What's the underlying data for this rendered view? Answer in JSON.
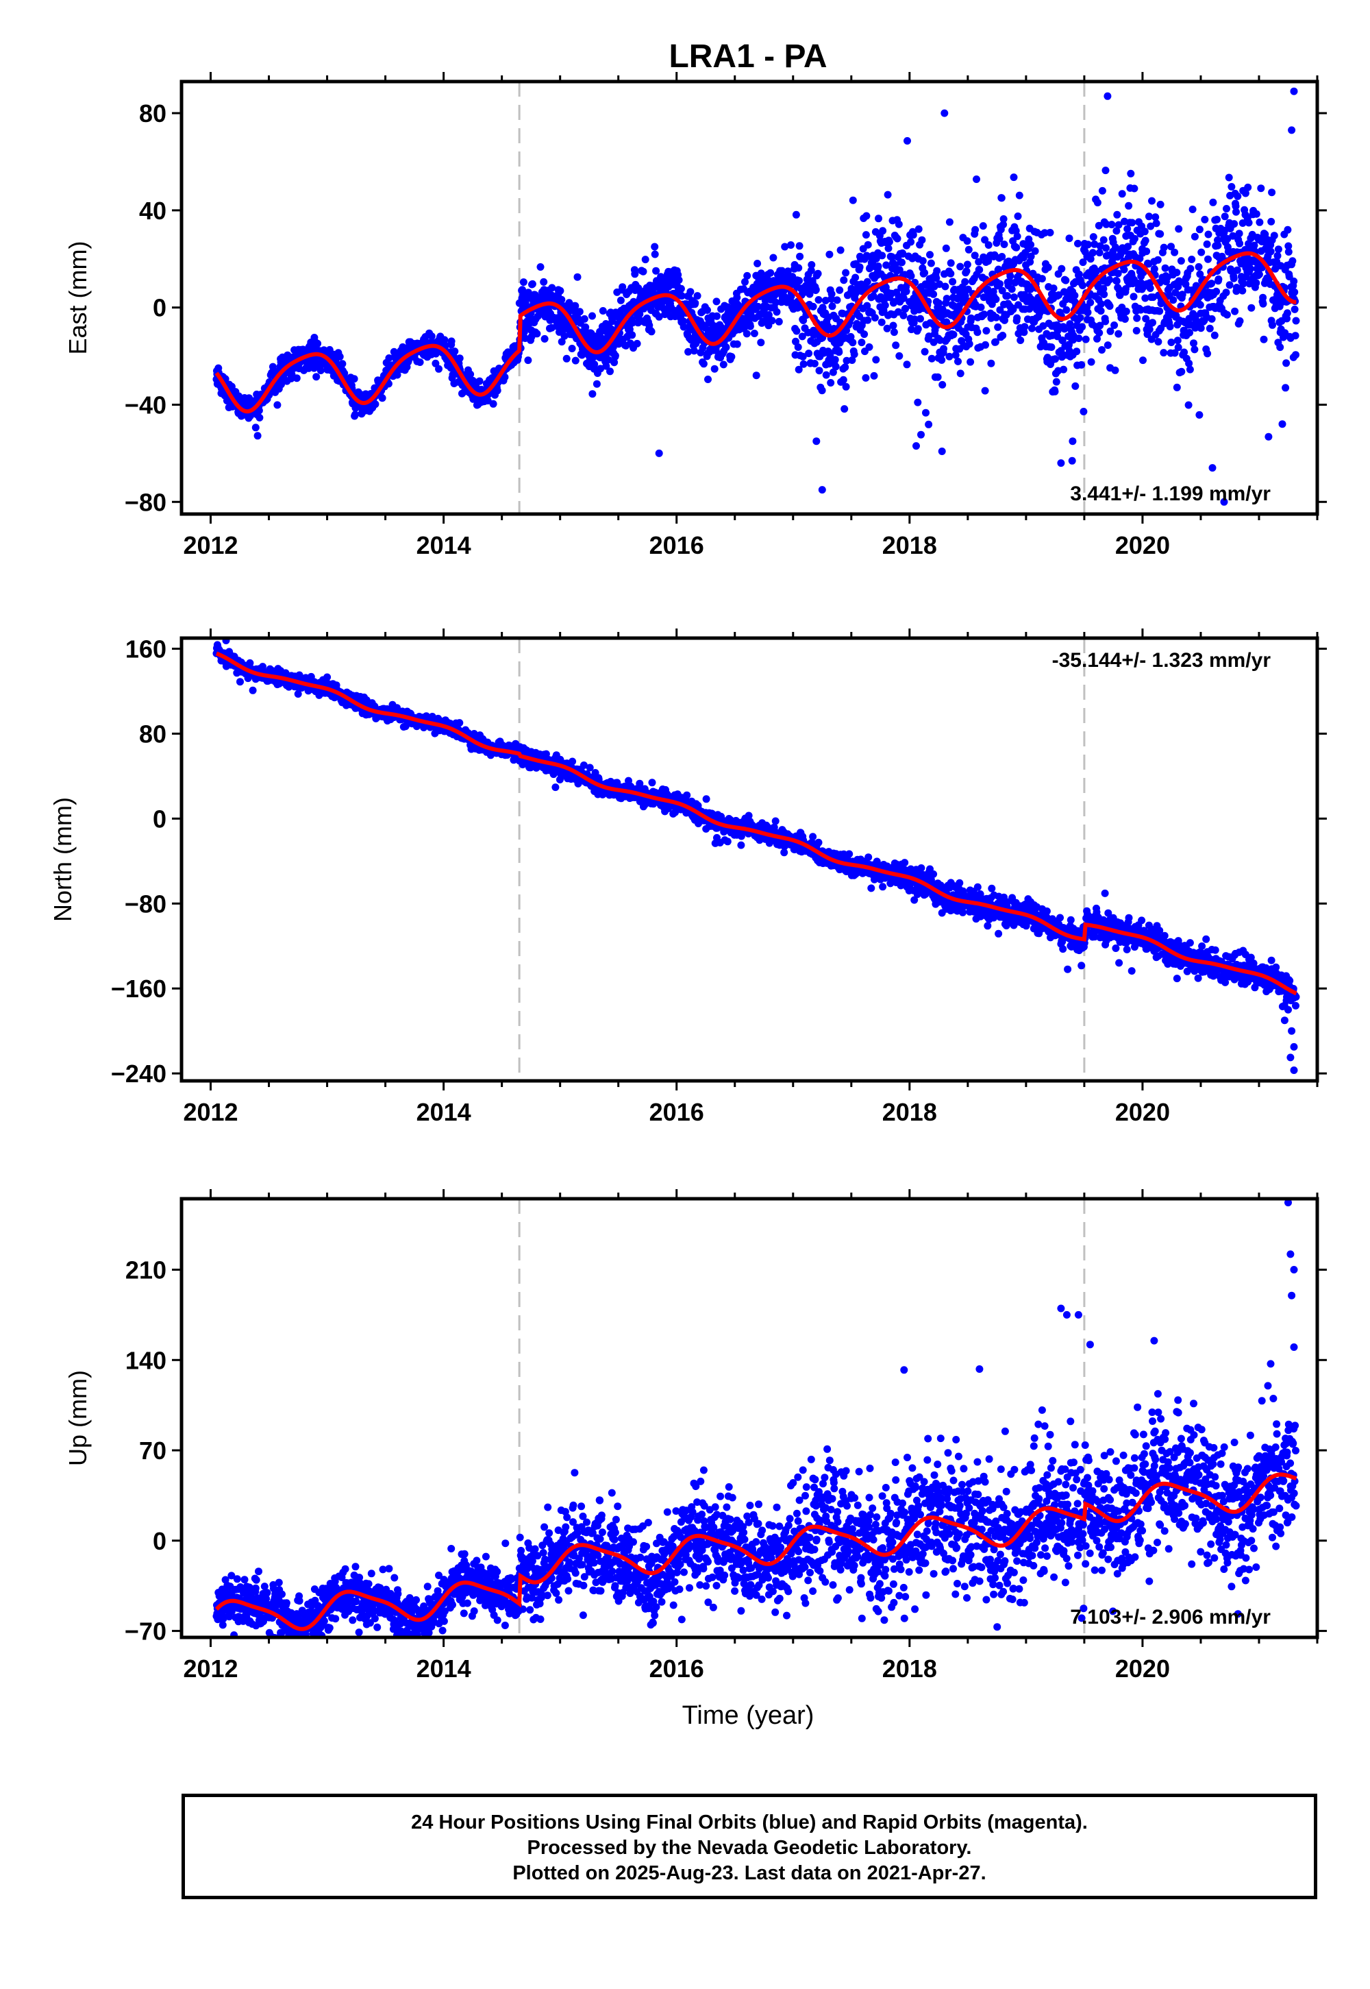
{
  "chart_data": {
    "type": "scatter",
    "title": "LRA1 - PA",
    "xlabel": "Time (year)",
    "x_range": [
      2011.75,
      2021.5
    ],
    "x_ticks": [
      2012,
      2014,
      2016,
      2018,
      2020
    ],
    "x_tick_labels": [
      "2012",
      "2014",
      "2016",
      "2018",
      "2020"
    ],
    "x_start": 2012.05,
    "x_end": 2021.32,
    "offset_epochs": [
      2014.65,
      2019.5
    ],
    "legend_colors": {
      "final_orbits": "#0000ff",
      "model": "#ff0000",
      "offsets": "#c0c0c0"
    },
    "panels": [
      {
        "name": "east",
        "ylabel": "East (mm)",
        "ylim": [
          -85,
          93
        ],
        "yticks": [
          -80,
          -40,
          0,
          40,
          80
        ],
        "ytick_labels": [
          "−80",
          "−40",
          "0",
          "40",
          "80"
        ],
        "rate_text": "3.441+/- 1.199 mm/yr",
        "rate_position": "bottom-right",
        "model": {
          "ref_year": 2016.5,
          "intercept": -2,
          "rate": 3.441,
          "annual_amp": 10.5,
          "annual_phase": 2.6,
          "semi_amp": 2,
          "semi_phase": 1.0,
          "jumps": [
            [
              2014.65,
              14
            ],
            [
              2019.5,
              0
            ]
          ]
        },
        "noise": [
          {
            "until": 2014.65,
            "sd": 2.5
          },
          {
            "until": 2017.0,
            "sd": 6
          },
          {
            "until": 2021.4,
            "sd": 13
          }
        ],
        "outliers": [
          [
            2015.85,
            -60
          ],
          [
            2017.25,
            -75
          ],
          [
            2019.3,
            -64
          ],
          [
            2020.6,
            -66
          ],
          [
            2020.7,
            -80
          ],
          [
            2018.3,
            80
          ],
          [
            2019.7,
            87
          ],
          [
            2021.3,
            89
          ],
          [
            2021.28,
            73
          ],
          [
            2017.2,
            -55
          ],
          [
            2019.4,
            -55
          ],
          [
            2018.7,
            -23
          ]
        ]
      },
      {
        "name": "north",
        "ylabel": "North (mm)",
        "ylim": [
          -247,
          170
        ],
        "yticks": [
          -240,
          -160,
          -80,
          0,
          80,
          160
        ],
        "ytick_labels": [
          "−240",
          "−160",
          "−80",
          "0",
          "80",
          "160"
        ],
        "rate_text": "-35.144+/- 1.323 mm/yr",
        "rate_position": "top-right",
        "model": {
          "ref_year": 2016.5,
          "intercept": 8,
          "rate": -35.144,
          "annual_amp": 3,
          "annual_phase": 2.0,
          "semi_amp": 1,
          "semi_phase": 0.5,
          "jumps": [
            [
              2014.65,
              -2
            ],
            [
              2019.5,
              14
            ]
          ]
        },
        "noise": [
          {
            "until": 2014.65,
            "sd": 3
          },
          {
            "until": 2018.0,
            "sd": 4
          },
          {
            "until": 2021.4,
            "sd": 6
          }
        ],
        "outliers": [
          [
            2021.25,
            -180
          ],
          [
            2021.28,
            -200
          ],
          [
            2021.3,
            -215
          ],
          [
            2021.3,
            -237
          ],
          [
            2021.27,
            -225
          ],
          [
            2019.25,
            -110
          ],
          [
            2019.3,
            -118
          ],
          [
            2021.22,
            -190
          ]
        ]
      },
      {
        "name": "up",
        "ylabel": "Up (mm)",
        "ylim": [
          -75,
          265
        ],
        "yticks": [
          -70,
          0,
          70,
          140,
          210
        ],
        "ytick_labels": [
          "−70",
          "0",
          "70",
          "140",
          "210"
        ],
        "rate_text": "7.103+/- 2.906 mm/yr",
        "rate_position": "bottom-right",
        "model": {
          "ref_year": 2016.5,
          "intercept": 6,
          "rate": 7.103,
          "annual_amp": 12,
          "annual_phase": 0.0,
          "semi_amp": 3,
          "semi_phase": 0.5,
          "jumps": [
            [
              2014.65,
              22
            ],
            [
              2019.5,
              12
            ]
          ]
        },
        "noise": [
          {
            "until": 2014.65,
            "sd": 9
          },
          {
            "until": 2017.0,
            "sd": 16
          },
          {
            "until": 2021.4,
            "sd": 24
          }
        ],
        "outliers": [
          [
            2019.3,
            180
          ],
          [
            2019.35,
            175
          ],
          [
            2019.45,
            175
          ],
          [
            2021.25,
            262
          ],
          [
            2021.27,
            222
          ],
          [
            2021.3,
            210
          ],
          [
            2021.28,
            190
          ],
          [
            2021.3,
            150
          ],
          [
            2020.1,
            155
          ],
          [
            2018.6,
            133
          ],
          [
            2021.1,
            137
          ],
          [
            2019.55,
            152
          ]
        ]
      }
    ]
  },
  "caption": {
    "line1": "24 Hour Positions Using Final Orbits (blue) and Rapid Orbits (magenta).",
    "line2": "Processed by the Nevada Geodetic Laboratory.",
    "line3": "Plotted on 2025-Aug-23. Last data on 2021-Apr-27."
  }
}
